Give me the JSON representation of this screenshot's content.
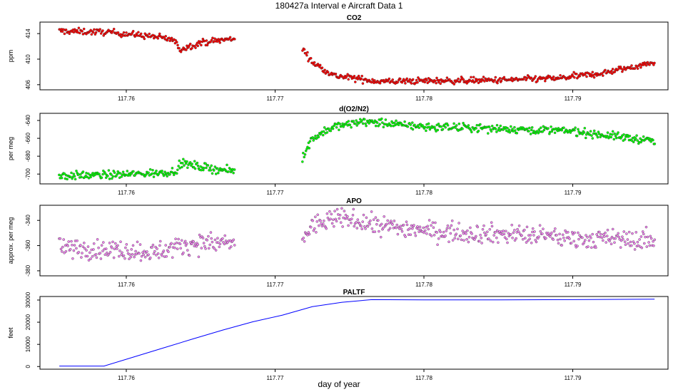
{
  "figure": {
    "title": "180427a   Interval e Aircraft Data 1",
    "xlabel": "day of year"
  },
  "chart_data": [
    {
      "type": "scatter",
      "title": "CO2",
      "ylabel": "ppm",
      "xlim": [
        117.7542,
        117.7964
      ],
      "ylim": [
        405.2,
        415.8
      ],
      "xticks": [
        117.76,
        117.77,
        117.78,
        117.79
      ],
      "xtick_labels": [
        "117.76",
        "117.77",
        "117.78",
        "117.79"
      ],
      "yticks": [
        406,
        410,
        414
      ],
      "ytick_labels": [
        "406",
        "410",
        "414"
      ],
      "color": "#ff0000",
      "gap": [
        117.7673,
        117.7718
      ],
      "x": [
        117.7555,
        117.759,
        117.762,
        117.7632,
        117.7636,
        117.765,
        117.7672,
        117.7718,
        117.7725,
        117.774,
        117.777,
        117.78,
        117.785,
        117.789,
        117.792,
        117.7955
      ],
      "y": [
        414.4,
        414.2,
        413.5,
        413.0,
        411.5,
        412.6,
        413.2,
        411.8,
        409.5,
        407.4,
        406.5,
        406.6,
        406.7,
        407.0,
        407.8,
        409.5
      ]
    },
    {
      "type": "scatter",
      "title": "d(O2/N2)",
      "ylabel": "per meg",
      "xlim": [
        117.7542,
        117.7964
      ],
      "ylim": [
        -711,
        -632
      ],
      "xticks": [
        117.76,
        117.77,
        117.78,
        117.79
      ],
      "xtick_labels": [
        "117.76",
        "117.77",
        "117.78",
        "117.79"
      ],
      "yticks": [
        -700,
        -680,
        -660,
        -640
      ],
      "ytick_labels": [
        "-700",
        "-680",
        "-660",
        "-640"
      ],
      "color": "#00ff00",
      "gap": [
        117.7673,
        117.7718
      ],
      "x": [
        117.7555,
        117.759,
        117.762,
        117.7632,
        117.7638,
        117.765,
        117.7672,
        117.7718,
        117.7725,
        117.774,
        117.776,
        117.78,
        117.785,
        117.79,
        117.7955
      ],
      "y": [
        -702,
        -701,
        -699,
        -697,
        -688,
        -692,
        -697,
        -683,
        -660,
        -647,
        -641,
        -647,
        -649,
        -652,
        -663
      ]
    },
    {
      "type": "scatter",
      "title": "APO",
      "ylabel": "approx. per meg",
      "xlim": [
        117.7542,
        117.7964
      ],
      "ylim": [
        -384,
        -328
      ],
      "xticks": [
        117.76,
        117.77,
        117.78,
        117.79
      ],
      "xtick_labels": [
        "117.76",
        "117.77",
        "117.78",
        "117.79"
      ],
      "yticks": [
        -380,
        -360,
        -340
      ],
      "ytick_labels": [
        "-380",
        "-360",
        "-340"
      ],
      "color": "#ee82ee",
      "gap": [
        117.7673,
        117.7718
      ],
      "x": [
        117.7555,
        117.759,
        117.762,
        117.7645,
        117.7672,
        117.7718,
        117.7725,
        117.7745,
        117.777,
        117.781,
        117.786,
        117.79,
        117.7955
      ],
      "y": [
        -362,
        -363,
        -365,
        -358,
        -358,
        -356,
        -344,
        -338,
        -344,
        -349,
        -351,
        -354,
        -356
      ]
    },
    {
      "type": "line",
      "title": "PALTF",
      "ylabel": "feet",
      "xlim": [
        117.7542,
        117.7964
      ],
      "ylim": [
        -1200,
        31600
      ],
      "xticks": [
        117.76,
        117.77,
        117.78,
        117.79
      ],
      "xtick_labels": [
        "117.76",
        "117.77",
        "117.78",
        "117.79"
      ],
      "yticks": [
        0,
        10000,
        20000,
        30000
      ],
      "ytick_labels": [
        "0",
        "10000",
        "20000",
        "30000"
      ],
      "color": "#0000ff",
      "x": [
        117.7555,
        117.7585,
        117.7605,
        117.7625,
        117.7645,
        117.7665,
        117.7685,
        117.7705,
        117.7725,
        117.7745,
        117.7765,
        117.78,
        117.785,
        117.79,
        117.7955
      ],
      "y": [
        200,
        200,
        4300,
        8400,
        12500,
        16500,
        20200,
        23200,
        27000,
        29000,
        30200,
        30100,
        30100,
        30200,
        30400
      ]
    }
  ]
}
